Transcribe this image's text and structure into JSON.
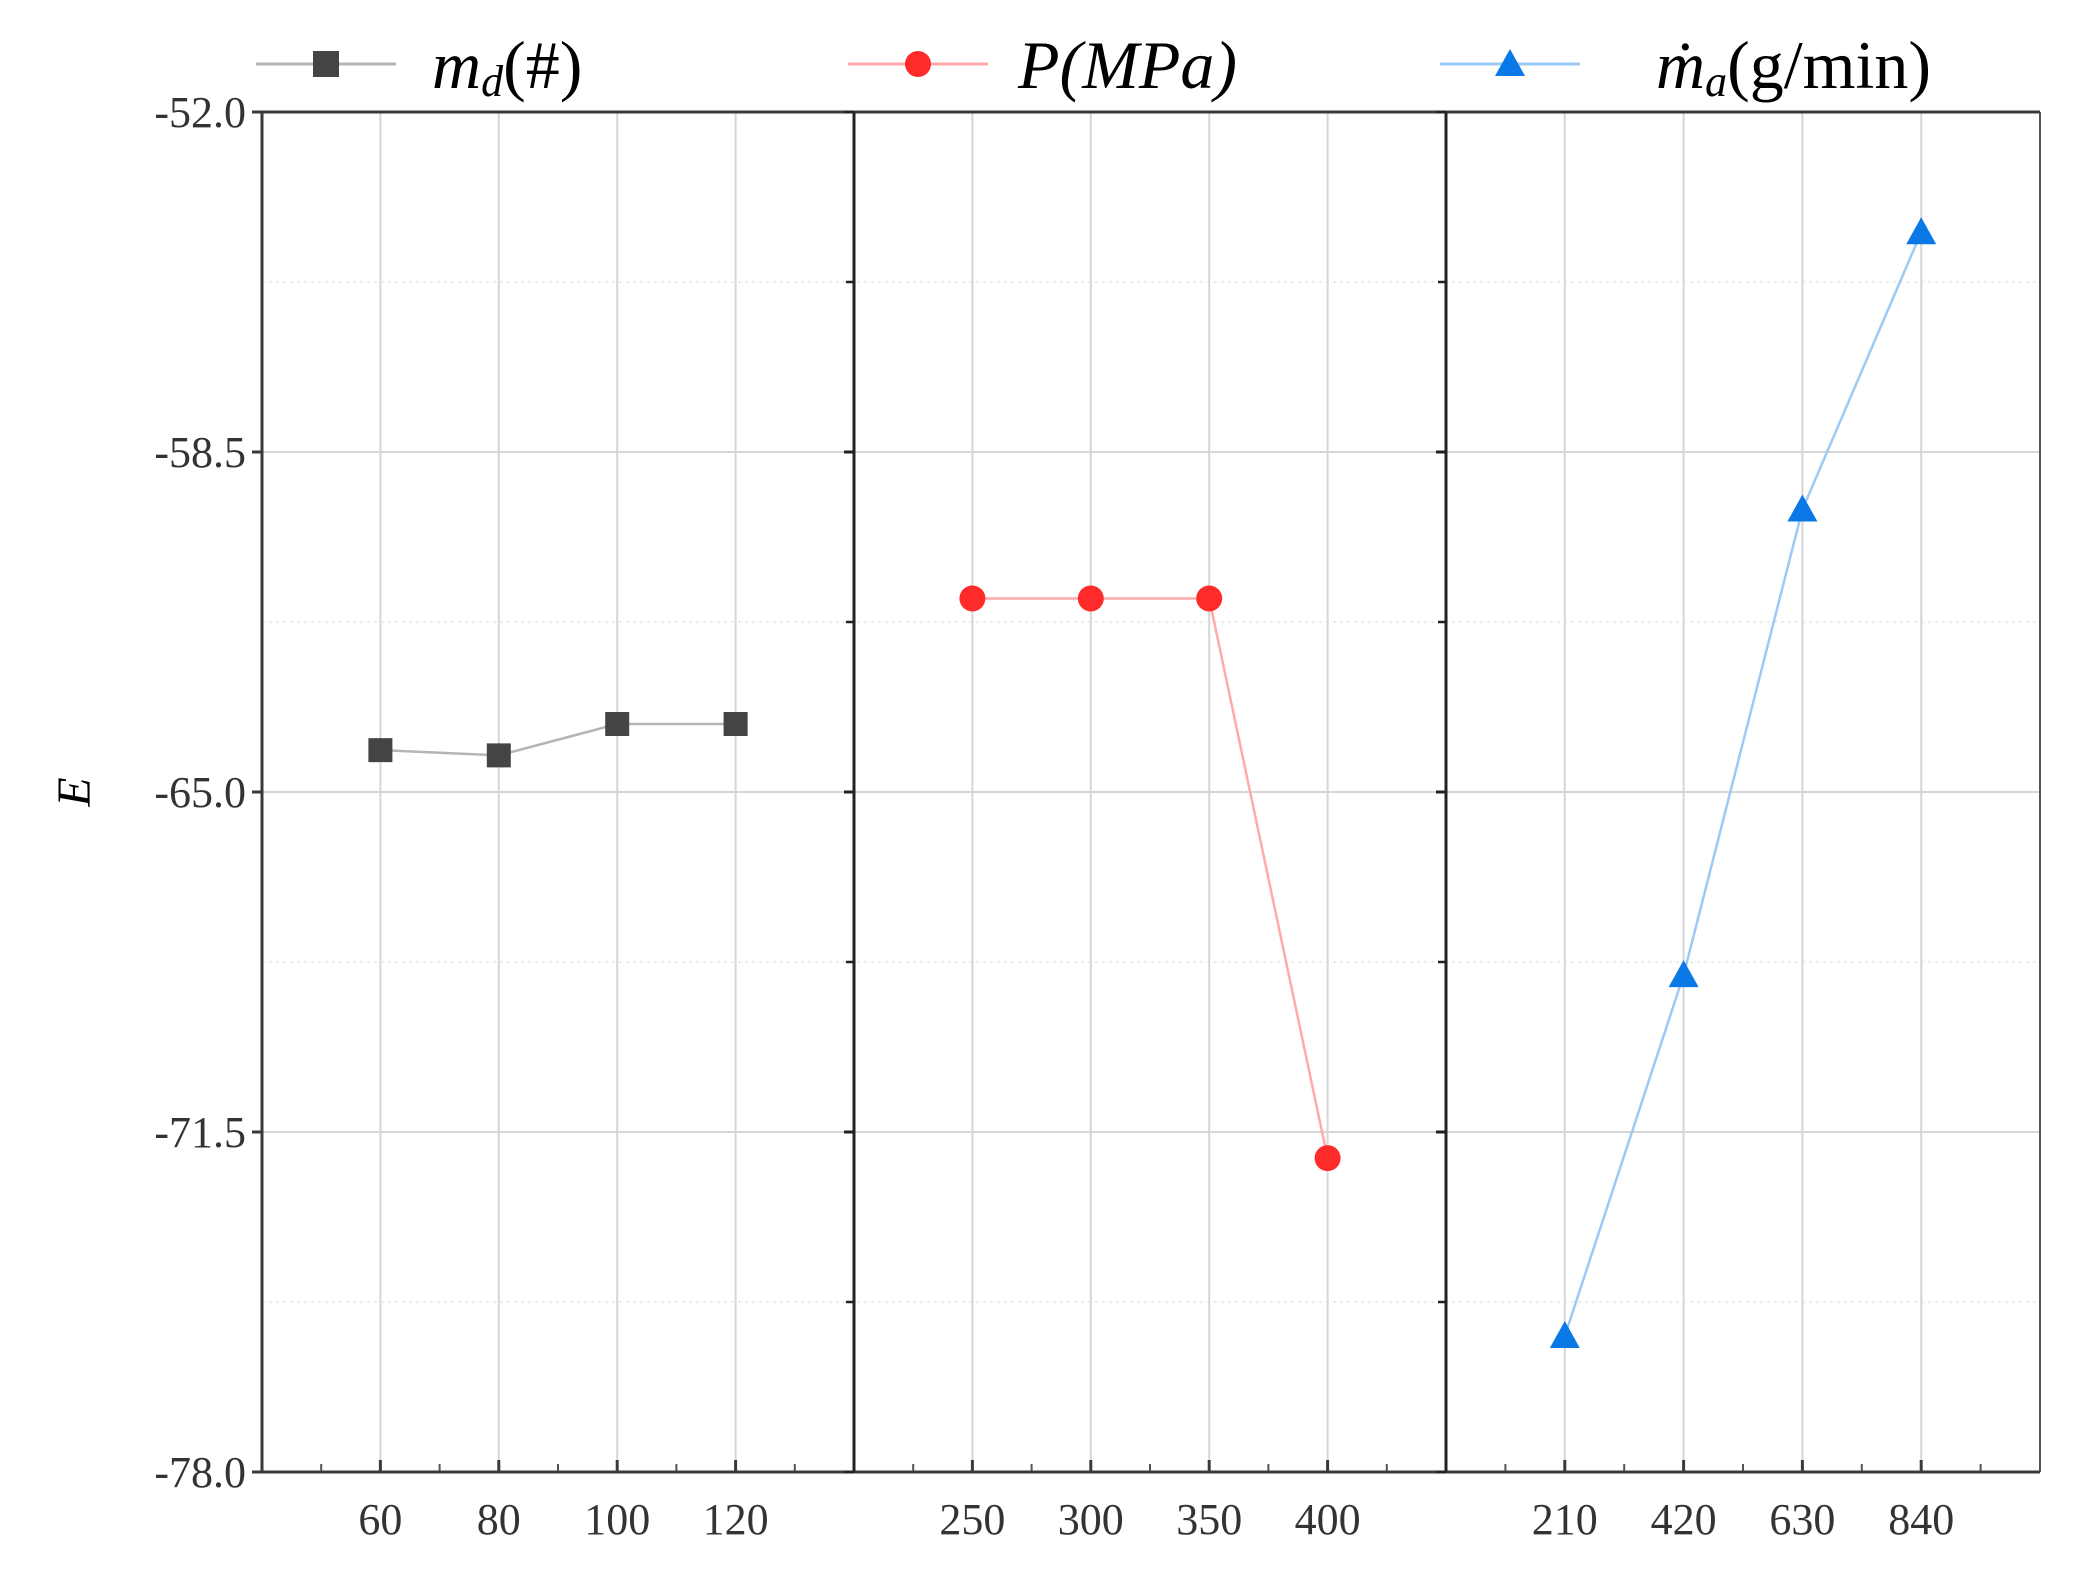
{
  "chart_data": {
    "type": "line",
    "ylabel": "E",
    "ylim": [
      -78.0,
      -52.0
    ],
    "yticks": [
      -52.0,
      -58.5,
      -65.0,
      -71.5,
      -78.0
    ],
    "ytick_labels": [
      "-52.0",
      "-58.5",
      "-65.0",
      "-71.5",
      "-78.0"
    ],
    "grid": true,
    "legend": "top",
    "panels": [
      {
        "name": "md",
        "legend_main": "m",
        "legend_sub": "d",
        "legend_unit": "(#)",
        "marker": "square",
        "color": "#444444",
        "line_color": "#b5b5b5",
        "x": [
          "60",
          "80",
          "100",
          "120"
        ],
        "y": [
          -64.2,
          -64.3,
          -63.7,
          -63.7
        ]
      },
      {
        "name": "P",
        "legend_main": "P",
        "legend_sub": "",
        "legend_unit": "(MPa)",
        "marker": "circle",
        "color": "#ff2b2b",
        "line_color": "#ffaaaa",
        "x": [
          "250",
          "300",
          "350",
          "400"
        ],
        "y": [
          -61.3,
          -61.3,
          -61.3,
          -72.0
        ]
      },
      {
        "name": "ma",
        "legend_main": "ṁ",
        "legend_sub": "a",
        "legend_unit": "(g/min)",
        "marker": "triangle",
        "color": "#0a78e6",
        "line_color": "#9cc9f5",
        "x": [
          "210",
          "420",
          "630",
          "840"
        ],
        "y": [
          -75.4,
          -68.5,
          -59.6,
          -54.3
        ]
      }
    ]
  }
}
